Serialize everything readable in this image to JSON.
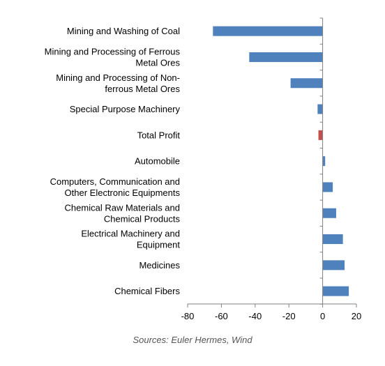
{
  "chart_data": {
    "type": "bar",
    "orientation": "horizontal",
    "categories": [
      "Mining and Washing of Coal",
      "Mining and Processing of Ferrous Metal Ores",
      "Mining and Processing of Non-ferrous Metal Ores",
      "Special Purpose Machinery",
      "Total Profit",
      "Automobile",
      "Computers, Communication and Other Electronic Equipments",
      "Chemical Raw Materials and Chemical Products",
      "Electrical Machinery and Equipment",
      "Medicines",
      "Chemical Fibers"
    ],
    "category_label_lines": [
      [
        "Mining and Washing of Coal"
      ],
      [
        "Mining and Processing of Ferrous",
        "Metal Ores"
      ],
      [
        "Mining and Processing of Non-",
        "ferrous Metal Ores"
      ],
      [
        "Special Purpose Machinery"
      ],
      [
        "Total Profit"
      ],
      [
        "Automobile"
      ],
      [
        "Computers, Communication and",
        "Other Electronic Equipments"
      ],
      [
        "Chemical Raw Materials and",
        "Chemical Products"
      ],
      [
        "Electrical Machinery and",
        "Equipment"
      ],
      [
        "Medicines"
      ],
      [
        "Chemical Fibers"
      ]
    ],
    "values": [
      -65,
      -43.5,
      -19,
      -3,
      -2.5,
      1.5,
      6,
      8,
      12,
      13,
      15.5
    ],
    "bar_colors": [
      "#4f81bd",
      "#4f81bd",
      "#4f81bd",
      "#4f81bd",
      "#c0504d",
      "#4f81bd",
      "#4f81bd",
      "#4f81bd",
      "#4f81bd",
      "#4f81bd",
      "#4f81bd"
    ],
    "xlim": [
      -80,
      20
    ],
    "xticks": [
      -80,
      -60,
      -40,
      -20,
      0,
      20
    ],
    "title": "",
    "xlabel": "",
    "ylabel": "",
    "grid": false,
    "legend": "none"
  },
  "source": "Sources: Euler Hermes, Wind"
}
